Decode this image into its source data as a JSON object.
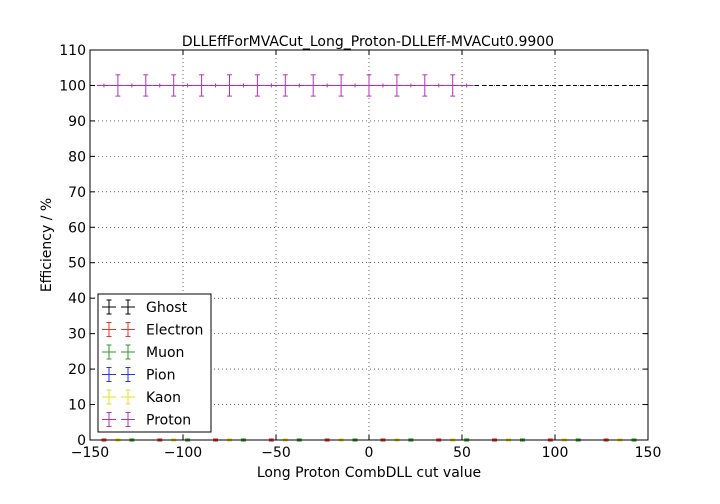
{
  "chart_data": {
    "type": "scatter",
    "title": "DLLEffForMVACut_Long_Proton-DLLEff-MVACut0.9900",
    "xlabel": "Long Proton CombDLL cut value",
    "ylabel": "Efficiency / %",
    "xlim": [
      -150,
      150
    ],
    "ylim": [
      0,
      110
    ],
    "xticks": [
      -150,
      -100,
      -50,
      0,
      50,
      100,
      150
    ],
    "xtick_labels": [
      "−150",
      "−100",
      "−50",
      "0",
      "50",
      "100",
      "150"
    ],
    "yticks": [
      0,
      10,
      20,
      30,
      40,
      50,
      60,
      70,
      80,
      90,
      100,
      110
    ],
    "ytick_labels": [
      "0",
      "10",
      "20",
      "30",
      "40",
      "50",
      "60",
      "70",
      "80",
      "90",
      "100",
      "110"
    ],
    "grid": true,
    "legend_position": "lower-left",
    "reference_line": {
      "y": 100,
      "style": "dashed",
      "color": "#000000"
    },
    "x_error": 3.75,
    "series": [
      {
        "name": "Ghost",
        "color": "#000000",
        "x": [],
        "y": [],
        "yerr": []
      },
      {
        "name": "Electron",
        "color": "#e8312a",
        "x": [
          -142.5,
          -112.5,
          -82.5,
          -52.5,
          -22.5,
          7.5,
          37.5,
          67.5,
          97.5,
          127.5
        ],
        "y": [
          0,
          0,
          0,
          0,
          0,
          0,
          0,
          0,
          0,
          0
        ],
        "yerr": [
          0.3,
          0.3,
          0.3,
          0.3,
          0.3,
          0.3,
          0.3,
          0.3,
          0.3,
          0.3
        ]
      },
      {
        "name": "Muon",
        "color": "#2a9a2a",
        "x": [
          -127.5,
          -97.5,
          -67.5,
          -37.5,
          -7.5,
          22.5,
          52.5,
          82.5,
          112.5,
          142.5
        ],
        "y": [
          0,
          0,
          0,
          0,
          0,
          0,
          0,
          0,
          0,
          0
        ],
        "yerr": [
          0.3,
          0.3,
          0.3,
          0.3,
          0.3,
          0.3,
          0.3,
          0.3,
          0.3,
          0.3
        ]
      },
      {
        "name": "Pion",
        "color": "#2233ee",
        "x": [],
        "y": [],
        "yerr": []
      },
      {
        "name": "Kaon",
        "color": "#e8dc2a",
        "x": [
          -135,
          -105,
          -75,
          -45,
          -15,
          15,
          45,
          75,
          105,
          135
        ],
        "y": [
          0,
          0,
          0,
          0,
          0,
          0,
          0,
          0,
          0,
          0
        ],
        "yerr": [
          0.3,
          0.3,
          0.3,
          0.3,
          0.3,
          0.3,
          0.3,
          0.3,
          0.3,
          0.3
        ]
      },
      {
        "name": "Proton",
        "color": "#b133b1",
        "x": [
          -142.5,
          -135,
          -127.5,
          -120,
          -112.5,
          -105,
          -97.5,
          -90,
          -82.5,
          -75,
          -67.5,
          -60,
          -52.5,
          -45,
          -37.5,
          -30,
          -22.5,
          -15,
          -7.5,
          0,
          7.5,
          15,
          22.5,
          30,
          37.5,
          45,
          52.5
        ],
        "y": [
          100,
          100,
          100,
          100,
          100,
          100,
          100,
          100,
          100,
          100,
          100,
          100,
          100,
          100,
          100,
          100,
          100,
          100,
          100,
          100,
          100,
          100,
          100,
          100,
          100,
          100,
          100
        ],
        "yerr": [
          0,
          3,
          0,
          3,
          0,
          3,
          0,
          3,
          0,
          3,
          0,
          3,
          0,
          3,
          0,
          3,
          0,
          3,
          0,
          3,
          0,
          3,
          0,
          3,
          0,
          3,
          0
        ]
      }
    ]
  }
}
